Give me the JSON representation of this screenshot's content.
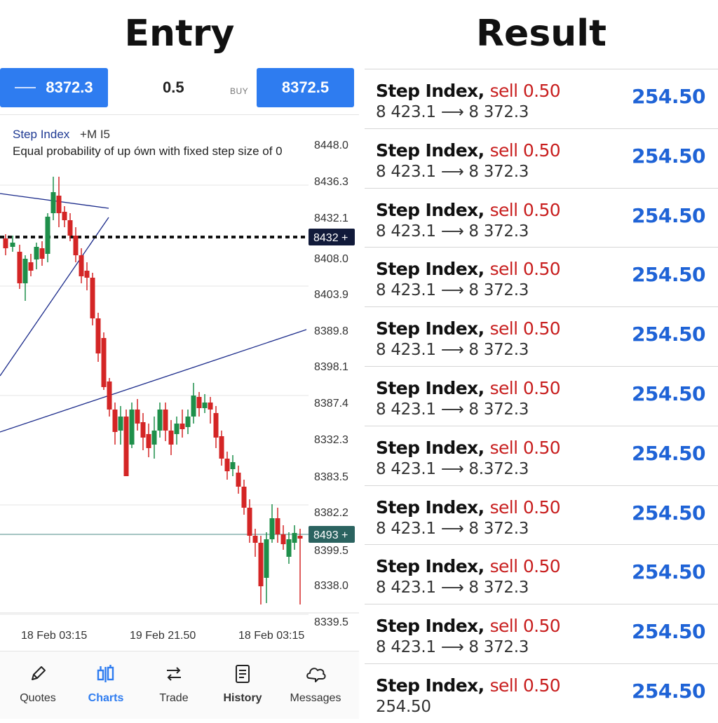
{
  "headings": {
    "entry": "Entry",
    "result": "Result"
  },
  "trade_bar": {
    "sell_price": "8372.3",
    "volume": "0.5",
    "buy_label": "BUY",
    "buy_price": "8372.5"
  },
  "chart": {
    "symbol": "Step Index",
    "timeframe": "+M I5",
    "description": "Equal probability of up ówn with fixed step size of 0",
    "price_labels": [
      "8448.0",
      "8436.3",
      "8432.1",
      "8408.0",
      "8403.9",
      "8389.8",
      "8398.1",
      "8387.4",
      "8332.3",
      "8383.5",
      "8382.2",
      "8399.5",
      "8338.0",
      "8339.5"
    ],
    "markers": [
      {
        "text": "8432 +",
        "color": "#111a3a"
      },
      {
        "text": "8493 +",
        "color": "#2b6360"
      }
    ],
    "time_labels": [
      "18 Feb 03:15",
      "19 Feb 21.50",
      "18 Feb 03:15"
    ],
    "colors": {
      "up": "#1e8f4a",
      "down": "#d42525",
      "trendline": "#1a2a8a"
    }
  },
  "nav": [
    {
      "label": "Quotes",
      "icon": "pencil-icon"
    },
    {
      "label": "Charts",
      "icon": "charts-icon"
    },
    {
      "label": "Trade",
      "icon": "trade-arrows-icon"
    },
    {
      "label": "History",
      "icon": "history-icon"
    },
    {
      "label": "Messages",
      "icon": "messages-icon"
    }
  ],
  "results": [
    {
      "symbol": "Step Index,",
      "side": "sell 0.50",
      "detail": "8 423.1 ⟶ 8 372.3",
      "profit": "254.50"
    },
    {
      "symbol": "Step Index,",
      "side": "sell 0.50",
      "detail": "8 423.1 ⟶ 8 372.3",
      "profit": "254.50"
    },
    {
      "symbol": "Step Index,",
      "side": "sell 0.50",
      "detail": "8 423.1 ⟶ 8 372.3",
      "profit": "254.50"
    },
    {
      "symbol": "Step Index,",
      "side": "sell 0.50",
      "detail": "8 423.1 ⟶ 8 372.3",
      "profit": "254.50"
    },
    {
      "symbol": "Step Index,",
      "side": "sell 0.50",
      "detail": "8 423.1 ⟶ 8 372.3",
      "profit": "254.50"
    },
    {
      "symbol": "Step Index,",
      "side": "sell 0.50",
      "detail": "8 423.1 ⟶ 8 372.3",
      "profit": "254.50"
    },
    {
      "symbol": "Step Index,",
      "side": "sell 0.50",
      "detail": "8 423.1 ⟶ 8.372.3",
      "profit": "254.50"
    },
    {
      "symbol": "Step Index,",
      "side": "sell 0.50",
      "detail": "8 423.1 ⟶ 8 372.3",
      "profit": "254.50"
    },
    {
      "symbol": "Step Index,",
      "side": "sell 0.50",
      "detail": "8 423.1 ⟶ 8 372.3",
      "profit": "254.50"
    },
    {
      "symbol": "Step Index,",
      "side": "sell 0.50",
      "detail": "8 423.1 ⟶ 8 372.3",
      "profit": "254.50"
    },
    {
      "symbol": "Step Index,",
      "side": "sell 0.50",
      "detail": "254.50",
      "profit": "254.50"
    }
  ]
}
